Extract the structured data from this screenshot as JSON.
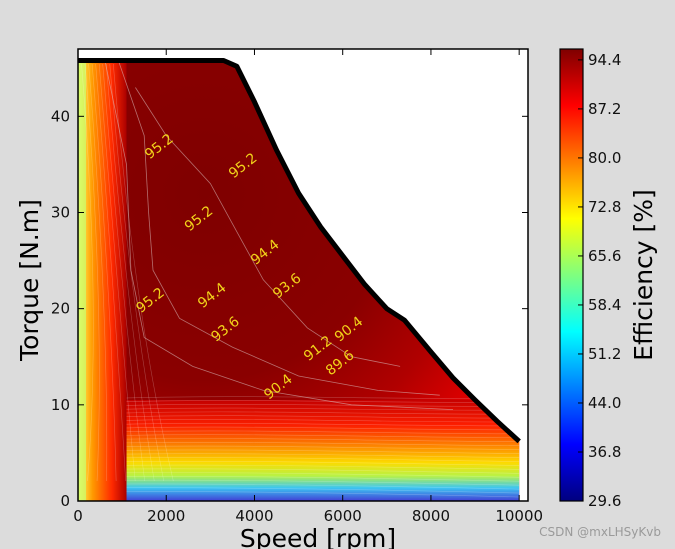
{
  "chart_data": {
    "type": "heatmap",
    "xlabel": "Speed [rpm]",
    "ylabel": "Torque [N.m]",
    "xlim": [
      0,
      10200
    ],
    "ylim": [
      0,
      47
    ],
    "xticks": [
      0,
      2000,
      4000,
      6000,
      8000,
      10000
    ],
    "yticks": [
      0,
      10,
      20,
      30,
      40
    ],
    "colorbar": {
      "label": "Efficiency [%]",
      "range": [
        29.6,
        96.0
      ],
      "ticks": [
        "29.6",
        "36.8",
        "44.0",
        "51.2",
        "58.4",
        "65.6",
        "72.8",
        "80.0",
        "87.2",
        "94.4"
      ],
      "colormap": [
        "#00007f",
        "#0000ff",
        "#007fff",
        "#00ffff",
        "#7fff7f",
        "#ffff00",
        "#ff7f00",
        "#ff0000",
        "#7f0000"
      ]
    },
    "max_torque_curve": {
      "speed": [
        0,
        3300,
        3600,
        4000,
        4500,
        5000,
        5500,
        6000,
        6500,
        7000,
        7400,
        8000,
        8500,
        9000,
        9500,
        10000
      ],
      "torque": [
        45.8,
        45.8,
        45.2,
        41.5,
        36.5,
        32.0,
        28.5,
        25.5,
        22.5,
        20.0,
        18.8,
        15.5,
        12.8,
        10.5,
        8.3,
        6.2
      ]
    },
    "contour_labels": [
      {
        "text": "95.2",
        "speed": 1900,
        "torque": 36.5
      },
      {
        "text": "95.2",
        "speed": 3800,
        "torque": 34.5
      },
      {
        "text": "95.2",
        "speed": 2800,
        "torque": 29.0
      },
      {
        "text": "95.2",
        "speed": 1700,
        "torque": 20.5
      },
      {
        "text": "94.4",
        "speed": 4300,
        "torque": 25.5
      },
      {
        "text": "94.4",
        "speed": 3100,
        "torque": 21.0
      },
      {
        "text": "93.6",
        "speed": 4800,
        "torque": 22.0
      },
      {
        "text": "93.6",
        "speed": 3400,
        "torque": 17.5
      },
      {
        "text": "91.2",
        "speed": 5500,
        "torque": 15.5
      },
      {
        "text": "90.4",
        "speed": 6200,
        "torque": 17.5
      },
      {
        "text": "89.6",
        "speed": 6000,
        "torque": 14.0
      },
      {
        "text": "90.4",
        "speed": 4600,
        "torque": 11.5
      }
    ]
  },
  "watermark": "CSDN @mxLHSyKvb"
}
